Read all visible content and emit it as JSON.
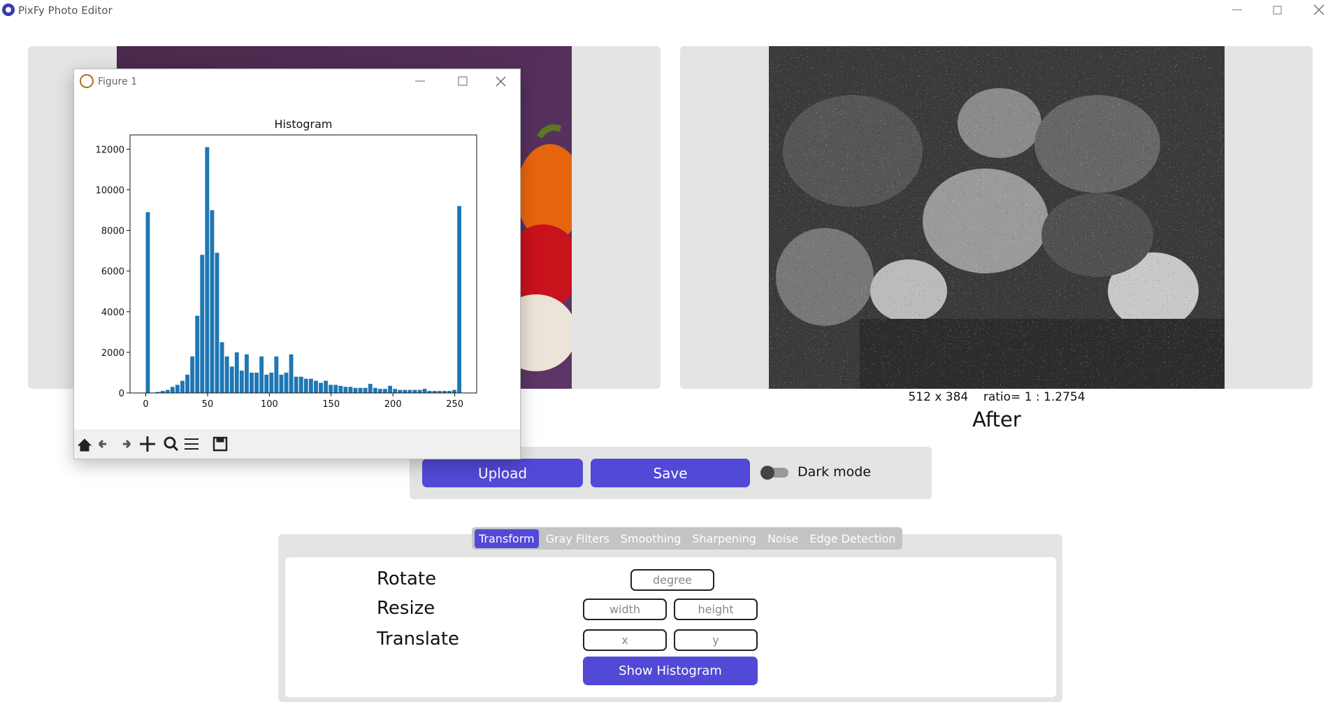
{
  "window": {
    "title": "PixFy Photo Editor"
  },
  "after": {
    "info": "512 x 384    ratio= 1 : 1.2754",
    "label": "After"
  },
  "controls": {
    "upload": "Upload",
    "save": "Save",
    "dark_mode": "Dark mode"
  },
  "tabs": [
    "Transform",
    "Gray Filters",
    "Smoothing",
    "Sharpening",
    "Noise",
    "Edge Detection"
  ],
  "transform": {
    "rows": [
      {
        "label": "Rotate",
        "inputs": [
          "degree"
        ]
      },
      {
        "label": "Resize",
        "inputs": [
          "width",
          "height"
        ]
      },
      {
        "label": "Translate",
        "inputs": [
          "x",
          "y"
        ]
      }
    ],
    "button": "Show Histogram"
  },
  "figure": {
    "title": "Figure 1"
  },
  "chart_data": {
    "type": "histogram",
    "title": "Histogram",
    "color": "#1f77b4",
    "bins": [
      0,
      4,
      8,
      12,
      16,
      20,
      24,
      28,
      32,
      36,
      40,
      44,
      48,
      52,
      56,
      60,
      64,
      68,
      72,
      76,
      80,
      84,
      88,
      92,
      96,
      100,
      104,
      108,
      112,
      116,
      120,
      124,
      128,
      132,
      136,
      140,
      144,
      148,
      152,
      156,
      160,
      164,
      168,
      172,
      176,
      180,
      184,
      188,
      192,
      196,
      200,
      204,
      208,
      212,
      216,
      220,
      224,
      228,
      232,
      236,
      240,
      244,
      248,
      252,
      256
    ],
    "values": [
      8900,
      0,
      50,
      100,
      150,
      300,
      400,
      600,
      900,
      1800,
      3800,
      6800,
      12100,
      9000,
      6900,
      2500,
      1800,
      1300,
      2000,
      1100,
      1900,
      1000,
      1000,
      1800,
      900,
      1000,
      1800,
      900,
      1000,
      1900,
      800,
      800,
      700,
      700,
      600,
      500,
      600,
      400,
      400,
      350,
      300,
      300,
      250,
      250,
      250,
      450,
      250,
      200,
      200,
      350,
      200,
      150,
      150,
      150,
      150,
      150,
      200,
      100,
      100,
      100,
      100,
      100,
      150,
      9200
    ],
    "xlim": [
      -12.75,
      267.75
    ],
    "ylim": [
      0,
      12700
    ],
    "xticks": [
      0,
      50,
      100,
      150,
      200,
      250
    ],
    "yticks": [
      0,
      2000,
      4000,
      6000,
      8000,
      10000,
      12000
    ]
  }
}
